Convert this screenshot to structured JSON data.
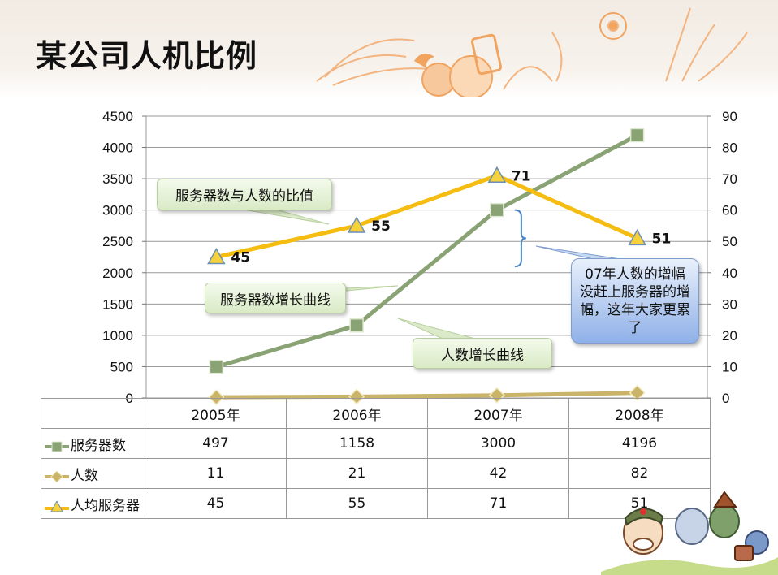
{
  "title": "某公司人机比例",
  "colors": {
    "servers": "#8aa374",
    "people": "#c9b46a",
    "ratio": "#f5bd11",
    "bracket": "#4a86c5"
  },
  "icons": [
    "flower-decoration-icon",
    "phone-icon",
    "bird-icon",
    "cartoon-mascot-icon"
  ],
  "chart_data": {
    "type": "line",
    "categories": [
      "2005年",
      "2006年",
      "2007年",
      "2008年"
    ],
    "series": [
      {
        "name": "服务器数",
        "axis": "left",
        "marker": "square",
        "values": [
          497,
          1158,
          3000,
          4196
        ]
      },
      {
        "name": "人数",
        "axis": "left",
        "marker": "diamond",
        "values": [
          11,
          21,
          42,
          82
        ]
      },
      {
        "name": "人均服务器",
        "axis": "right",
        "marker": "triangle",
        "values": [
          45,
          55,
          71,
          51
        ]
      }
    ],
    "y_left": {
      "min": 0,
      "max": 4500,
      "step": 500,
      "ticks": [
        "0",
        "500",
        "1000",
        "1500",
        "2000",
        "2500",
        "3000",
        "3500",
        "4000",
        "4500"
      ]
    },
    "y_right": {
      "min": 0,
      "max": 90,
      "step": 10,
      "ticks": [
        "0",
        "10",
        "20",
        "30",
        "40",
        "50",
        "60",
        "70",
        "80",
        "90"
      ]
    },
    "grid": true,
    "data_labels": [
      "45",
      "55",
      "71",
      "51"
    ],
    "data_table": true
  },
  "callouts": {
    "ratio": "服务器数与人数的比值",
    "servers": "服务器数增长曲线",
    "people": "人数增长曲线",
    "note": "07年人数的增幅没赶上服务器的增幅，这年大家更累了"
  },
  "table": {
    "rows": [
      {
        "label": "服务器数",
        "values": [
          "497",
          "1158",
          "3000",
          "4196"
        ]
      },
      {
        "label": "人数",
        "values": [
          "11",
          "21",
          "42",
          "82"
        ]
      },
      {
        "label": "人均服务器",
        "values": [
          "45",
          "55",
          "71",
          "51"
        ]
      }
    ]
  }
}
